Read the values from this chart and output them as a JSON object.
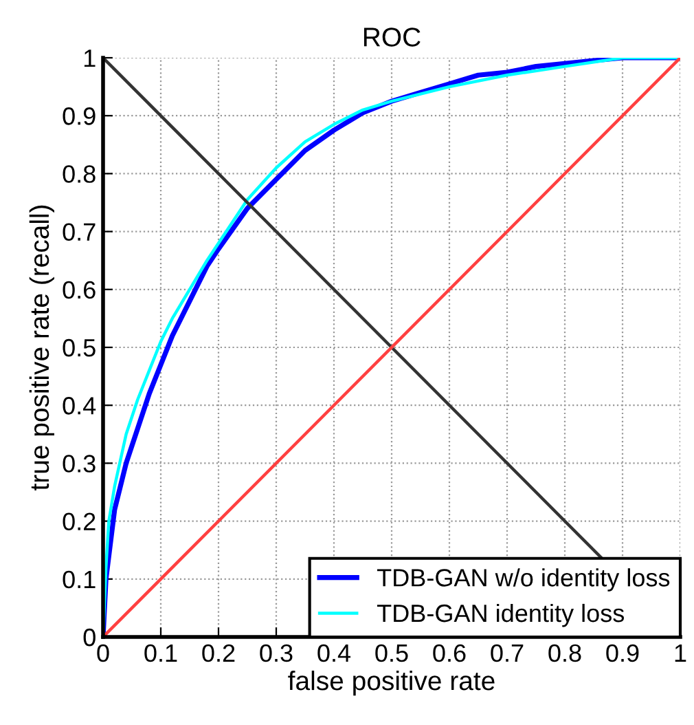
{
  "chart_data": {
    "type": "line",
    "title": "ROC",
    "xlabel": "false positive rate",
    "ylabel": "true positive rate (recall)",
    "xlim": [
      0,
      1
    ],
    "ylim": [
      0,
      1
    ],
    "xticks": [
      0,
      0.1,
      0.2,
      0.3,
      0.4,
      0.5,
      0.6,
      0.7,
      0.8,
      0.9,
      1
    ],
    "yticks": [
      0,
      0.1,
      0.2,
      0.3,
      0.4,
      0.5,
      0.6,
      0.7,
      0.8,
      0.9,
      1
    ],
    "grid": true,
    "legend": "bottom right",
    "line_style": "solid",
    "series": [
      {
        "name": "TDB-GAN w/o identity loss",
        "color": "#0000ff",
        "x": [
          0,
          0.005,
          0.02,
          0.04,
          0.06,
          0.08,
          0.1,
          0.12,
          0.15,
          0.18,
          0.2,
          0.25,
          0.3,
          0.35,
          0.4,
          0.45,
          0.5,
          0.55,
          0.6,
          0.65,
          0.7,
          0.75,
          0.8,
          0.85,
          0.9,
          1
        ],
        "values": [
          0,
          0.1,
          0.22,
          0.3,
          0.36,
          0.42,
          0.47,
          0.52,
          0.58,
          0.64,
          0.67,
          0.74,
          0.79,
          0.84,
          0.875,
          0.905,
          0.925,
          0.94,
          0.955,
          0.97,
          0.975,
          0.985,
          0.99,
          0.995,
          1,
          1
        ]
      },
      {
        "name": "TDB-GAN identity loss",
        "color": "#00ffff",
        "x": [
          0,
          0.005,
          0.01,
          0.02,
          0.04,
          0.06,
          0.08,
          0.1,
          0.12,
          0.15,
          0.18,
          0.2,
          0.25,
          0.3,
          0.35,
          0.4,
          0.45,
          0.5,
          0.6,
          0.7,
          0.8,
          0.9,
          1
        ],
        "values": [
          0,
          0.12,
          0.2,
          0.26,
          0.35,
          0.41,
          0.46,
          0.51,
          0.55,
          0.6,
          0.65,
          0.68,
          0.755,
          0.81,
          0.855,
          0.885,
          0.91,
          0.925,
          0.95,
          0.97,
          0.985,
          1,
          1
        ]
      },
      {
        "color": "#333333",
        "x": [
          0,
          1
        ],
        "values": [
          1,
          0
        ]
      },
      {
        "color": "#ff4040",
        "x": [
          0,
          1
        ],
        "values": [
          0,
          1
        ]
      }
    ]
  }
}
